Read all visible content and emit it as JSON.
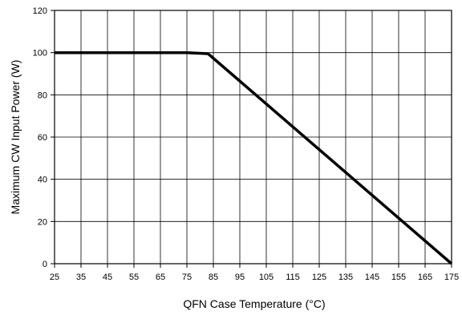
{
  "chart_data": {
    "type": "line",
    "title": "",
    "xlabel": "QFN Case Temperature (°C)",
    "ylabel": "Maximum CW Input Power (W)",
    "xlim": [
      25,
      175
    ],
    "ylim": [
      0,
      120
    ],
    "x_ticks": [
      25,
      35,
      45,
      55,
      65,
      75,
      85,
      95,
      105,
      115,
      125,
      135,
      145,
      155,
      165,
      175
    ],
    "y_ticks": [
      0,
      20,
      40,
      60,
      80,
      100,
      120
    ],
    "grid": true,
    "legend": "none",
    "series": [
      {
        "x": [
          25,
          75,
          83,
          175
        ],
        "y": [
          100,
          100,
          99.5,
          0
        ],
        "color": "#000000"
      }
    ]
  }
}
